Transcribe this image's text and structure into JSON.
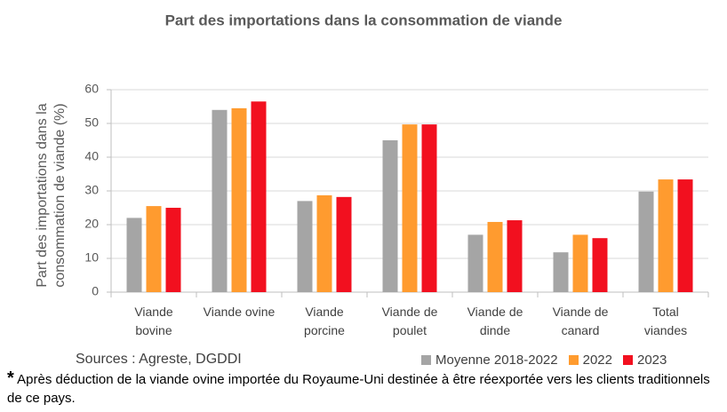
{
  "chart_data": {
    "type": "bar",
    "title": "Part des importations dans la consommation de viande",
    "y_label": "Part des importations dans la\nconsommation de viande (%)",
    "categories": [
      "Viande\nbovine",
      "Viande ovine",
      "Viande\nporcine",
      "Viande de\npoulet",
      "Viande de\ndinde",
      "Viande de\ncanard",
      "Total\nviandes"
    ],
    "series": [
      {
        "name": "Moyenne 2018-2022",
        "color": "#a5a5a5",
        "values": [
          22,
          54,
          27,
          45,
          17,
          11.8,
          29.8
        ]
      },
      {
        "name": "2022",
        "color": "#ff9b2f",
        "values": [
          25.5,
          54.5,
          28.7,
          49.7,
          20.8,
          17,
          33.4
        ]
      },
      {
        "name": "2023",
        "color": "#f2101f",
        "values": [
          25,
          56.5,
          28.2,
          49.7,
          21.3,
          16,
          33.4
        ]
      }
    ],
    "ylim": [
      0,
      60
    ],
    "yticks": [
      0,
      10,
      20,
      30,
      40,
      50,
      60
    ],
    "grid": true,
    "source": "Sources : Agreste, DGDDI",
    "note_marker": "*",
    "note": "Après déduction de la viande ovine importée du Royaume-Uni destinée à être réexportée vers les clients traditionnels de ce pays."
  }
}
